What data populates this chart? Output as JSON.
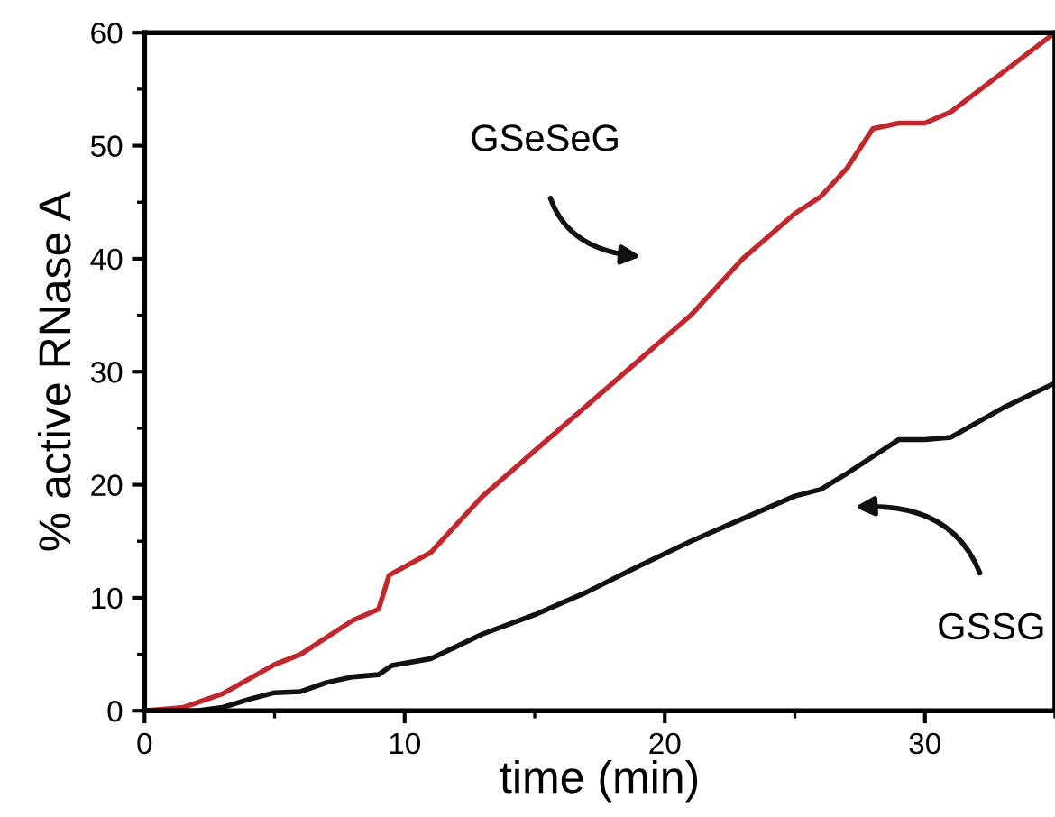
{
  "chart_data": {
    "type": "line",
    "xlabel": "time (min)",
    "ylabel": "% active RNase A",
    "xlim": [
      0,
      35
    ],
    "ylim": [
      0,
      60
    ],
    "xticks": [
      0,
      10,
      20,
      30
    ],
    "yticks": [
      0,
      10,
      20,
      30,
      40,
      50,
      60
    ],
    "grid": false,
    "legend": false,
    "marker": "none",
    "line_style": "solid",
    "series": [
      {
        "color": "#c0282d",
        "x": [
          0,
          1.5,
          3,
          5,
          6,
          8,
          9,
          9.4,
          11,
          13,
          15,
          17,
          19,
          21,
          23,
          25,
          26,
          27,
          28,
          29,
          30,
          31,
          33,
          35
        ],
        "values": [
          0,
          0.3,
          1.5,
          4.1,
          5,
          8,
          9,
          12,
          14,
          19,
          23,
          27,
          31,
          35,
          40,
          44,
          45.5,
          48,
          51.5,
          52,
          52,
          53,
          56.5,
          60
        ]
      },
      {
        "color": "#111111",
        "x": [
          0,
          2,
          3,
          4,
          5,
          6,
          7,
          8,
          9,
          9.5,
          11,
          13,
          15,
          17,
          19,
          21,
          23,
          25,
          26,
          27,
          28,
          29,
          30,
          31,
          33,
          35
        ],
        "values": [
          0,
          0,
          0.3,
          1,
          1.6,
          1.7,
          2.5,
          3,
          3.2,
          4,
          4.6,
          6.8,
          8.5,
          10.5,
          12.8,
          15,
          17,
          19,
          19.6,
          21,
          22.5,
          24,
          24,
          24.2,
          26.8,
          29
        ]
      }
    ],
    "annotations": [
      "GSeSeG",
      "GSSG"
    ]
  }
}
